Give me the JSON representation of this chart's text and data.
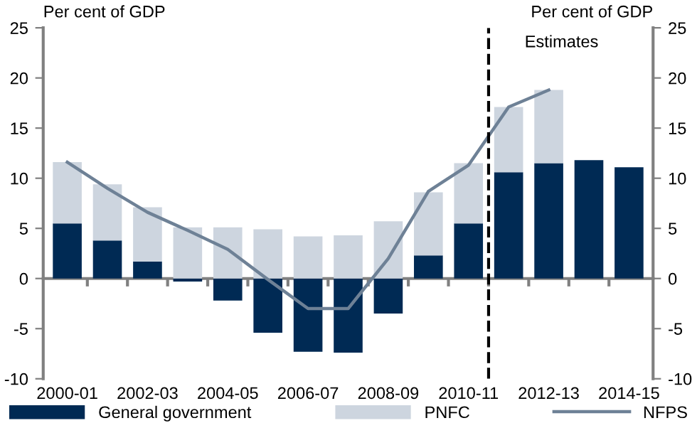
{
  "chart_data": {
    "type": "bar",
    "stacked": true,
    "categories": [
      "2000-01",
      null,
      "2002-03",
      null,
      "2004-05",
      null,
      "2006-07",
      null,
      "2008-09",
      null,
      "2010-11",
      null,
      "2012-13",
      null,
      "2014-15"
    ],
    "series": [
      {
        "name": "General government",
        "color": "#002a54",
        "values": [
          5.5,
          3.8,
          1.7,
          -0.3,
          -2.2,
          -5.4,
          -7.3,
          -7.4,
          -3.5,
          2.3,
          5.5,
          10.6,
          11.5,
          11.8,
          11.1
        ]
      },
      {
        "name": "PNFC",
        "color": "#cdd5df",
        "values": [
          6.1,
          5.6,
          5.4,
          5.1,
          5.1,
          4.9,
          4.2,
          4.3,
          5.7,
          6.3,
          6.0,
          6.5,
          7.3,
          null,
          null
        ]
      },
      {
        "name": "NFPS",
        "type": "line",
        "color": "#6e8196",
        "values": [
          11.6,
          9.0,
          6.6,
          4.8,
          2.9,
          -0.1,
          -3.0,
          -3.0,
          2.0,
          8.7,
          11.3,
          17.1,
          18.8,
          null,
          null
        ]
      }
    ],
    "ylabel": "Per cent of GDP",
    "y2label": "Per cent of GDP",
    "ylim": [
      -10,
      25
    ],
    "yticks": [
      -10,
      -5,
      0,
      5,
      10,
      15,
      20,
      25
    ],
    "y2lim": [
      -10,
      25
    ],
    "y2ticks": [
      -10,
      -5,
      0,
      5,
      10,
      15,
      20,
      25
    ],
    "ref_lines": [
      {
        "axis": "x",
        "value": "2010-11",
        "label": "Estimates",
        "color": "#000000",
        "line_style": "dashed"
      }
    ],
    "grid": false,
    "legend": "bottom"
  }
}
